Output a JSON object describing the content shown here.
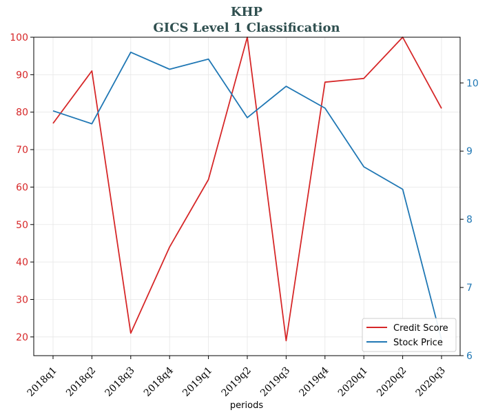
{
  "title": "KHP",
  "subtitle": "GICS Level 1 Classification",
  "chart_data": {
    "type": "line",
    "categories": [
      "2018q1",
      "2018q2",
      "2018q3",
      "2018q4",
      "2019q1",
      "2019q2",
      "2019q3",
      "2019q4",
      "2020q1",
      "2020q2",
      "2020q3"
    ],
    "xlabel": "periods",
    "series": [
      {
        "name": "Credit Score",
        "axis": "left",
        "color": "#d62728",
        "values": [
          77,
          91,
          21,
          44,
          62,
          100,
          19,
          88,
          89,
          100,
          81
        ]
      },
      {
        "name": "Stock Price",
        "axis": "right",
        "color": "#1f77b4",
        "values": [
          9.59,
          9.4,
          10.45,
          10.2,
          10.35,
          9.49,
          9.95,
          9.63,
          8.77,
          8.44,
          6.23
        ]
      }
    ],
    "left_axis": {
      "ylim": [
        15,
        100
      ],
      "ticks": [
        20,
        30,
        40,
        50,
        60,
        70,
        80,
        90,
        100
      ],
      "color": "#d62728"
    },
    "right_axis": {
      "ylim": [
        6,
        10.67
      ],
      "ticks": [
        6,
        7,
        8,
        9,
        10
      ],
      "color": "#1f77b4"
    },
    "grid": true,
    "legend_position": "bottom-right"
  }
}
